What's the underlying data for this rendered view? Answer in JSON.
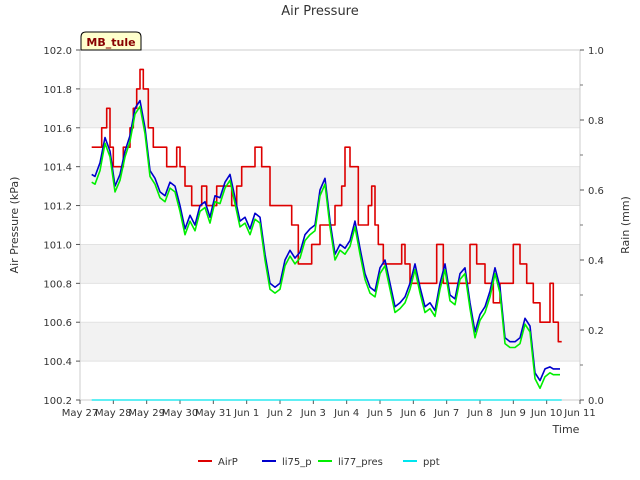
{
  "chart_data": {
    "type": "line",
    "title": "Air Pressure",
    "xlabel": "Time",
    "ylabel": "Air Pressure (kPa)",
    "y2label": "Rain (mm)",
    "badge": "MB_tule",
    "x_ticks": [
      "May 27",
      "May 28",
      "May 29",
      "May 30",
      "May 31",
      "Jun 1",
      "Jun 2",
      "Jun 3",
      "Jun 4",
      "Jun 5",
      "Jun 6",
      "Jun 7",
      "Jun 8",
      "Jun 9",
      "Jun 10",
      "Jun 11"
    ],
    "xlim": [
      0,
      15
    ],
    "ylim": [
      100.2,
      102.0
    ],
    "y_ticks": [
      "100.2",
      "100.4",
      "100.6",
      "100.8",
      "101.0",
      "101.2",
      "101.4",
      "101.6",
      "101.8",
      "102.0"
    ],
    "y2lim": [
      0.0,
      1.0
    ],
    "y2_ticks": [
      "0.0",
      "0.2",
      "0.4",
      "0.6",
      "0.8",
      "1.0"
    ],
    "grid": "horizontal bands",
    "legend": "bottom",
    "series": [
      {
        "name": "AirP",
        "color": "#dd0000",
        "axis": "left",
        "x": [
          0.35,
          0.55,
          0.65,
          0.8,
          0.9,
          1.0,
          1.1,
          1.3,
          1.5,
          1.6,
          1.7,
          1.8,
          1.9,
          2.05,
          2.2,
          2.4,
          2.6,
          2.8,
          2.9,
          3.0,
          3.15,
          3.35,
          3.5,
          3.65,
          3.8,
          3.95,
          4.1,
          4.35,
          4.55,
          4.7,
          4.85,
          5.05,
          5.25,
          5.45,
          5.7,
          5.95,
          6.15,
          6.35,
          6.55,
          6.75,
          6.95,
          7.2,
          7.4,
          7.55,
          7.65,
          7.75,
          7.85,
          7.95,
          8.1,
          8.35,
          8.55,
          8.65,
          8.75,
          8.85,
          8.95,
          9.1,
          9.35,
          9.55,
          9.65,
          9.75,
          9.9,
          10.1,
          10.4,
          10.7,
          10.9,
          11.1,
          11.3,
          11.5,
          11.7,
          11.9,
          12.15,
          12.4,
          12.6,
          12.8,
          13.0,
          13.2,
          13.4,
          13.6,
          13.8,
          13.95,
          14.1,
          14.2,
          14.35
        ],
        "values": [
          101.5,
          101.5,
          101.6,
          101.7,
          101.5,
          101.4,
          101.4,
          101.5,
          101.6,
          101.7,
          101.8,
          101.9,
          101.8,
          101.6,
          101.5,
          101.5,
          101.4,
          101.4,
          101.5,
          101.4,
          101.3,
          101.2,
          101.2,
          101.3,
          101.2,
          101.2,
          101.3,
          101.3,
          101.2,
          101.3,
          101.4,
          101.4,
          101.5,
          101.4,
          101.2,
          101.2,
          101.2,
          101.1,
          100.9,
          100.9,
          101.0,
          101.1,
          101.1,
          101.1,
          101.2,
          101.2,
          101.3,
          101.5,
          101.4,
          101.1,
          101.1,
          101.2,
          101.3,
          101.1,
          101.0,
          100.9,
          100.9,
          100.9,
          101.0,
          100.9,
          100.8,
          100.8,
          100.8,
          101.0,
          100.8,
          100.8,
          100.8,
          100.8,
          101.0,
          100.9,
          100.8,
          100.7,
          100.8,
          100.8,
          101.0,
          100.9,
          100.8,
          100.7,
          100.6,
          100.6,
          100.8,
          100.6,
          100.5
        ],
        "end": [
          14.45,
          100.5
        ]
      },
      {
        "name": "li75_p",
        "color": "#0000cc",
        "axis": "left",
        "x": [
          0.35,
          0.45,
          0.6,
          0.75,
          0.9,
          1.05,
          1.2,
          1.35,
          1.5,
          1.65,
          1.8,
          1.95,
          2.1,
          2.25,
          2.4,
          2.55,
          2.7,
          2.85,
          3.0,
          3.15,
          3.3,
          3.45,
          3.6,
          3.75,
          3.9,
          4.05,
          4.2,
          4.35,
          4.5,
          4.65,
          4.8,
          4.95,
          5.1,
          5.25,
          5.4,
          5.55,
          5.7,
          5.85,
          6.0,
          6.15,
          6.3,
          6.45,
          6.6,
          6.75,
          6.9,
          7.05,
          7.2,
          7.35,
          7.5,
          7.65,
          7.8,
          7.95,
          8.1,
          8.25,
          8.4,
          8.55,
          8.7,
          8.85,
          9.0,
          9.15,
          9.3,
          9.45,
          9.6,
          9.75,
          9.9,
          10.05,
          10.2,
          10.35,
          10.5,
          10.65,
          10.8,
          10.95,
          11.1,
          11.25,
          11.4,
          11.55,
          11.7,
          11.85,
          12.0,
          12.15,
          12.3,
          12.45,
          12.6,
          12.75,
          12.9,
          13.05,
          13.2,
          13.35,
          13.5,
          13.65,
          13.8,
          13.95,
          14.1,
          14.2,
          14.3,
          14.4
        ],
        "values": [
          101.36,
          101.35,
          101.42,
          101.55,
          101.48,
          101.3,
          101.36,
          101.48,
          101.56,
          101.7,
          101.74,
          101.6,
          101.38,
          101.34,
          101.27,
          101.25,
          101.32,
          101.3,
          101.2,
          101.08,
          101.15,
          101.1,
          101.2,
          101.22,
          101.14,
          101.25,
          101.24,
          101.32,
          101.36,
          101.24,
          101.12,
          101.14,
          101.08,
          101.16,
          101.14,
          100.95,
          100.8,
          100.78,
          100.8,
          100.92,
          100.97,
          100.93,
          100.96,
          101.05,
          101.08,
          101.1,
          101.28,
          101.34,
          101.12,
          100.95,
          101.0,
          100.98,
          101.02,
          101.12,
          100.98,
          100.85,
          100.78,
          100.76,
          100.88,
          100.92,
          100.8,
          100.68,
          100.7,
          100.73,
          100.8,
          100.9,
          100.78,
          100.68,
          100.7,
          100.66,
          100.8,
          100.9,
          100.74,
          100.72,
          100.85,
          100.88,
          100.7,
          100.55,
          100.64,
          100.68,
          100.76,
          100.88,
          100.78,
          100.52,
          100.5,
          100.5,
          100.52,
          100.62,
          100.58,
          100.34,
          100.3,
          100.36,
          100.37,
          100.36,
          100.36,
          100.36
        ]
      },
      {
        "name": "li77_pres",
        "color": "#00ee00",
        "axis": "left",
        "x": [
          0.35,
          0.45,
          0.6,
          0.75,
          0.9,
          1.05,
          1.2,
          1.35,
          1.5,
          1.65,
          1.8,
          1.95,
          2.1,
          2.25,
          2.4,
          2.55,
          2.7,
          2.85,
          3.0,
          3.15,
          3.3,
          3.45,
          3.6,
          3.75,
          3.9,
          4.05,
          4.2,
          4.35,
          4.5,
          4.65,
          4.8,
          4.95,
          5.1,
          5.25,
          5.4,
          5.55,
          5.7,
          5.85,
          6.0,
          6.15,
          6.3,
          6.45,
          6.6,
          6.75,
          6.9,
          7.05,
          7.2,
          7.35,
          7.5,
          7.65,
          7.8,
          7.95,
          8.1,
          8.25,
          8.4,
          8.55,
          8.7,
          8.85,
          9.0,
          9.15,
          9.3,
          9.45,
          9.6,
          9.75,
          9.9,
          10.05,
          10.2,
          10.35,
          10.5,
          10.65,
          10.8,
          10.95,
          11.1,
          11.25,
          11.4,
          11.55,
          11.7,
          11.85,
          12.0,
          12.15,
          12.3,
          12.45,
          12.6,
          12.75,
          12.9,
          13.05,
          13.2,
          13.35,
          13.5,
          13.65,
          13.8,
          13.95,
          14.1,
          14.2,
          14.3,
          14.4
        ],
        "values": [
          101.32,
          101.31,
          101.38,
          101.52,
          101.45,
          101.27,
          101.33,
          101.45,
          101.53,
          101.67,
          101.71,
          101.57,
          101.35,
          101.31,
          101.24,
          101.22,
          101.29,
          101.27,
          101.17,
          101.05,
          101.12,
          101.07,
          101.17,
          101.19,
          101.11,
          101.22,
          101.21,
          101.29,
          101.33,
          101.21,
          101.09,
          101.11,
          101.05,
          101.13,
          101.11,
          100.92,
          100.77,
          100.75,
          100.77,
          100.89,
          100.94,
          100.9,
          100.93,
          101.02,
          101.05,
          101.07,
          101.25,
          101.31,
          101.09,
          100.92,
          100.97,
          100.95,
          100.99,
          101.09,
          100.95,
          100.82,
          100.75,
          100.73,
          100.85,
          100.89,
          100.77,
          100.65,
          100.67,
          100.7,
          100.77,
          100.87,
          100.75,
          100.65,
          100.67,
          100.63,
          100.77,
          100.87,
          100.71,
          100.69,
          100.82,
          100.85,
          100.67,
          100.52,
          100.61,
          100.65,
          100.73,
          100.85,
          100.75,
          100.49,
          100.47,
          100.47,
          100.49,
          100.59,
          100.55,
          100.31,
          100.26,
          100.32,
          100.34,
          100.33,
          100.33,
          100.33
        ]
      },
      {
        "name": "ppt",
        "color": "#00e5ee",
        "axis": "right",
        "x": [
          0.35,
          14.45
        ],
        "values": [
          0.0,
          0.0
        ]
      }
    ]
  }
}
